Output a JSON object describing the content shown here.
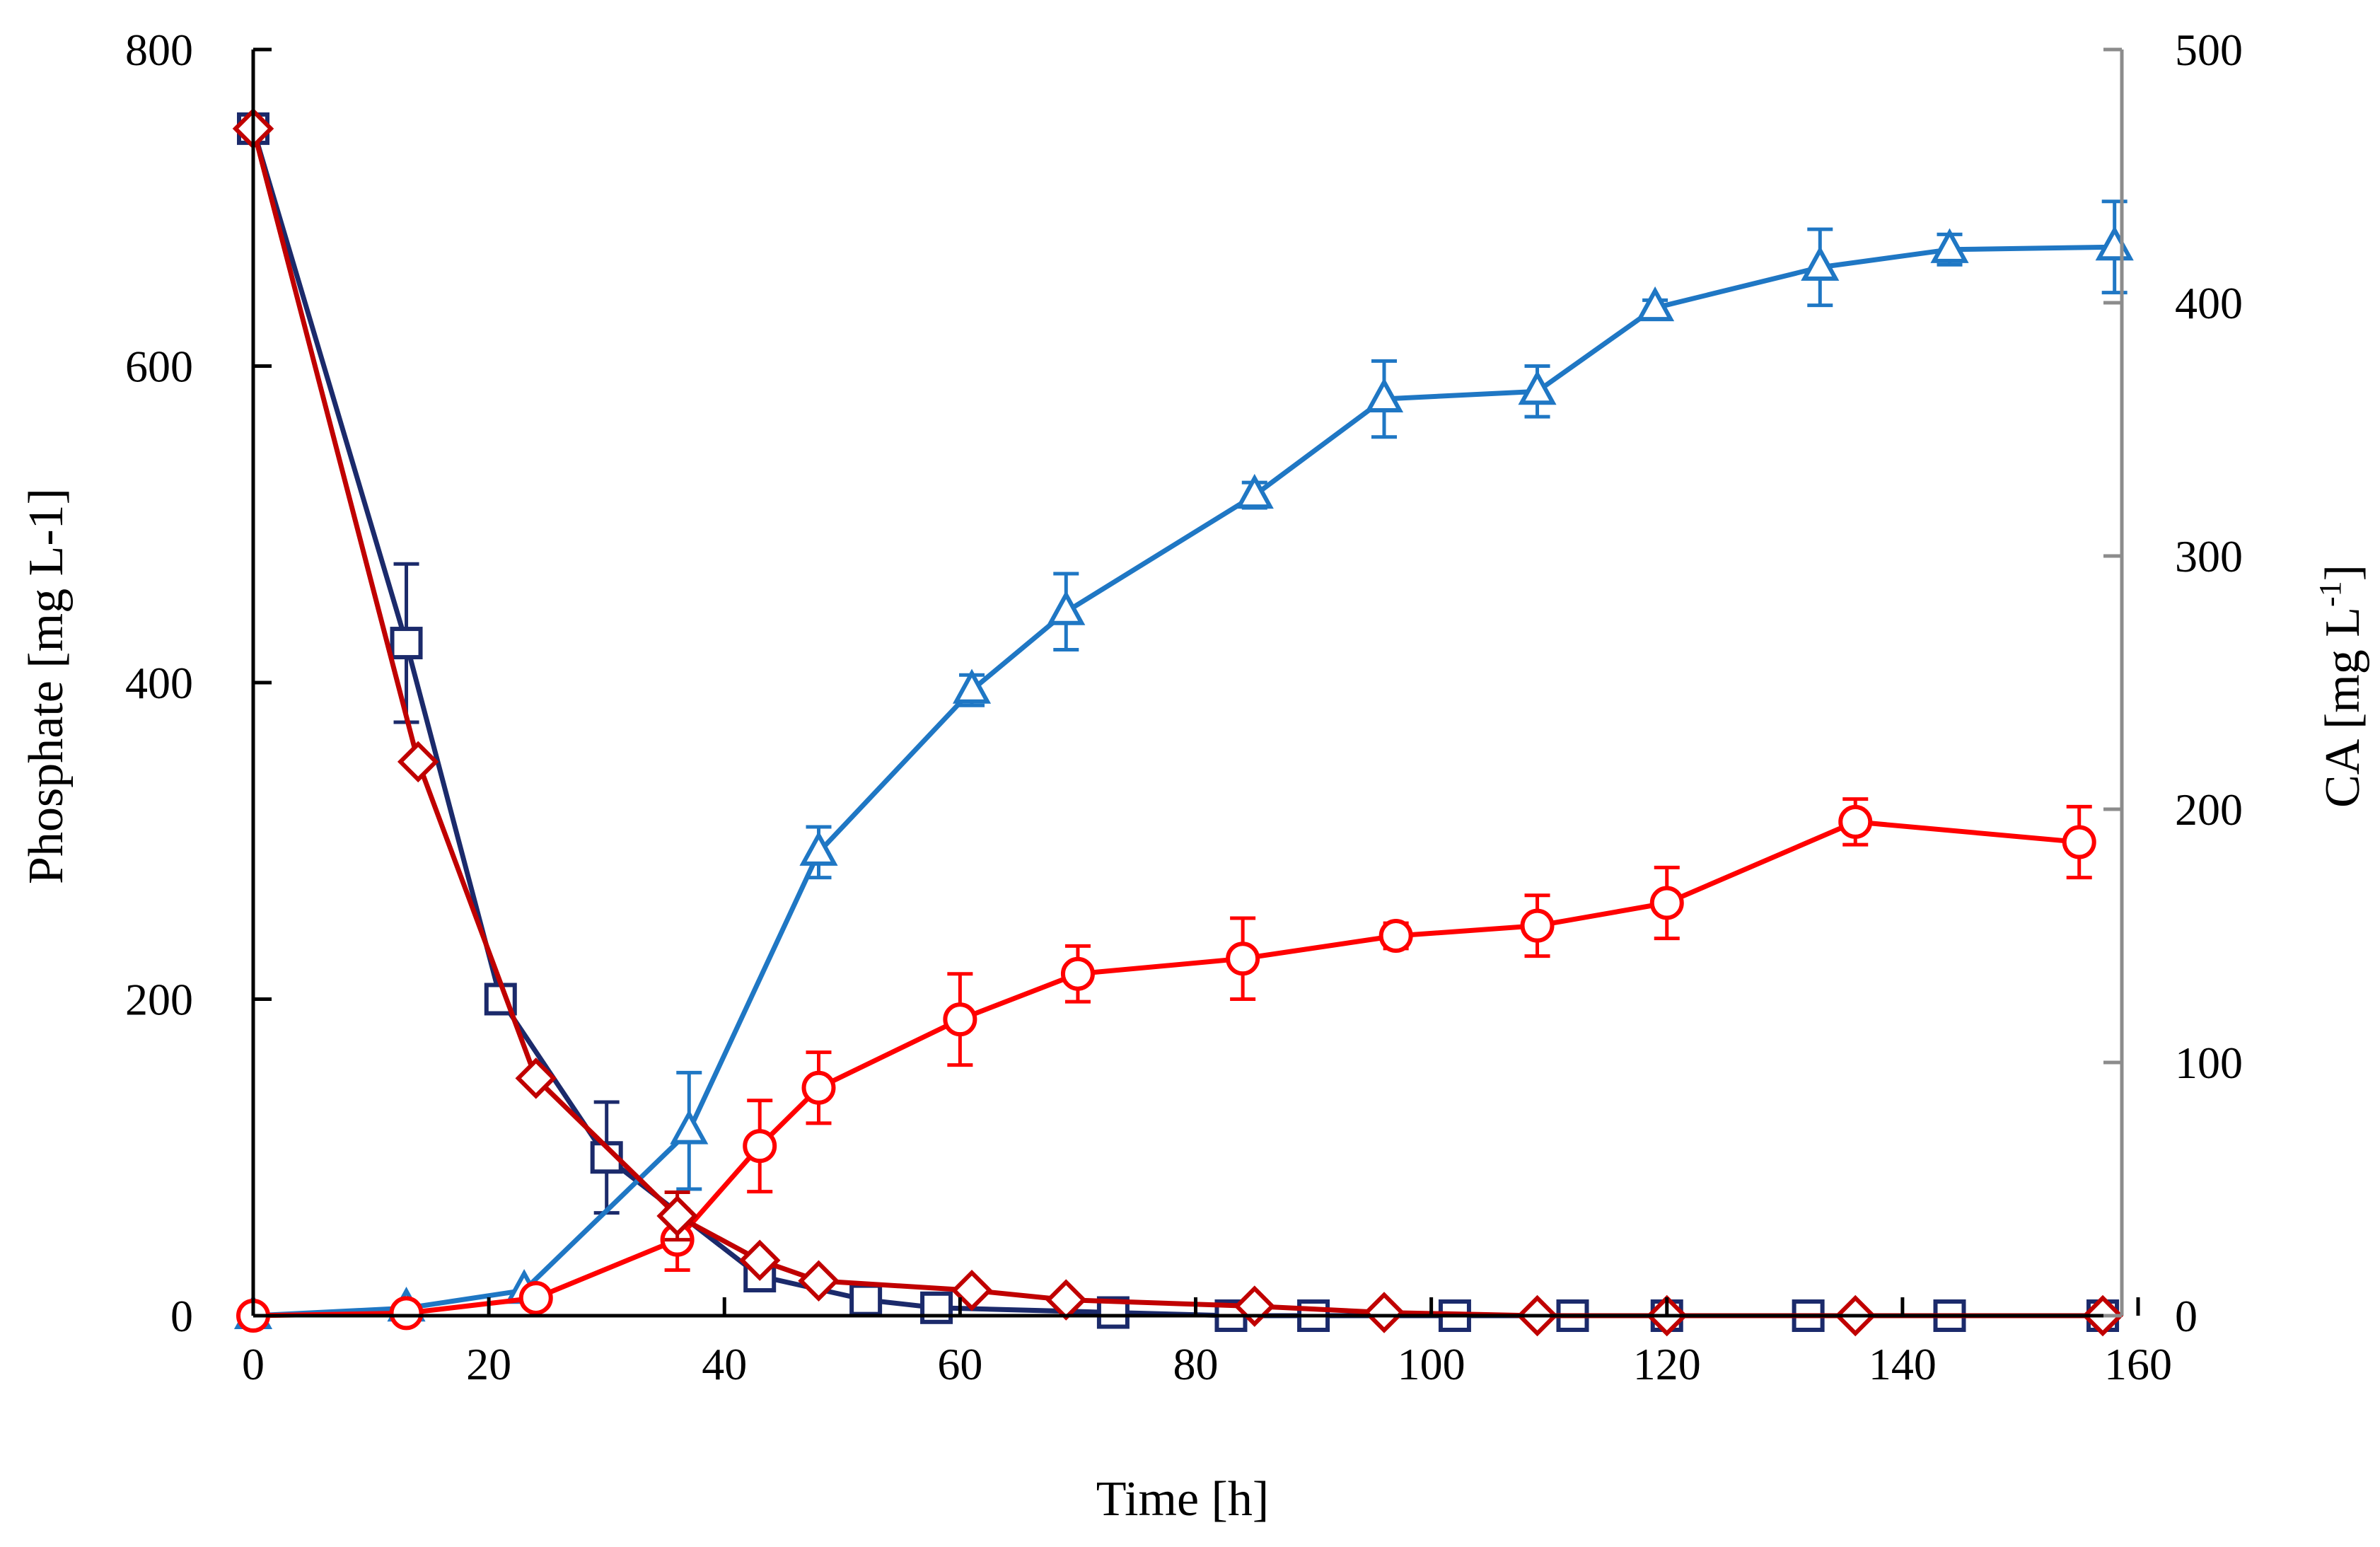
{
  "chart_data": {
    "type": "line",
    "title": "",
    "xlabel": "Time [h]",
    "ylabel": "Phosphate [mg L-1]",
    "y2label_main": "CA [mg L",
    "y2label_sup": "-1",
    "y2label_close": "]",
    "xlim": [
      0,
      160
    ],
    "ylim": [
      0,
      800
    ],
    "y2lim": [
      0,
      500
    ],
    "xticks": [
      0,
      20,
      40,
      60,
      80,
      100,
      120,
      140,
      160
    ],
    "yticks": [
      0,
      200,
      400,
      600,
      800
    ],
    "y2ticks": [
      0,
      100,
      200,
      300,
      400,
      500
    ],
    "grid": false,
    "series": [
      {
        "name": "Phosphate (square)",
        "axis": "left",
        "marker": "square",
        "color": "#1B2A6B",
        "x": [
          0,
          13,
          21,
          30,
          43,
          52,
          58,
          73,
          83,
          90,
          102,
          112,
          120,
          132,
          144,
          157
        ],
        "y": [
          750,
          425,
          200,
          100,
          25,
          10,
          5,
          2,
          0,
          0,
          0,
          0,
          0,
          0,
          0,
          0
        ],
        "err": [
          0,
          50,
          0,
          35,
          0,
          0,
          0,
          0,
          0,
          0,
          0,
          0,
          0,
          0,
          0,
          0
        ]
      },
      {
        "name": "Phosphate (diamond)",
        "axis": "left",
        "marker": "diamond",
        "color": "#C00000",
        "x": [
          0,
          14,
          24,
          36,
          43,
          48,
          61,
          69,
          85,
          96,
          109,
          120,
          136,
          157
        ],
        "y": [
          750,
          350,
          150,
          63,
          35,
          22,
          16,
          10,
          6,
          2,
          0,
          0,
          0,
          0
        ],
        "err": [
          0,
          0,
          0,
          15,
          0,
          0,
          0,
          0,
          0,
          0,
          0,
          0,
          0,
          0
        ]
      },
      {
        "name": "CA (triangle)",
        "axis": "right",
        "marker": "triangle",
        "color": "#1F77C4",
        "x": [
          0,
          13,
          23,
          37,
          48,
          61,
          69,
          85,
          96,
          109,
          119,
          133,
          144,
          158
        ],
        "y": [
          0,
          3,
          10,
          73,
          183,
          247,
          278,
          324,
          362,
          365,
          398,
          414,
          421,
          422
        ],
        "err": [
          0,
          0,
          0,
          23,
          10,
          6,
          15,
          5,
          15,
          10,
          3,
          15,
          6,
          18
        ]
      },
      {
        "name": "CA (circle)",
        "axis": "right",
        "marker": "circle",
        "color": "#FF0000",
        "x": [
          0,
          13,
          24,
          36,
          43,
          48,
          60,
          70,
          84,
          97,
          109,
          120,
          136,
          155
        ],
        "y": [
          0,
          1,
          7,
          30,
          67,
          90,
          117,
          135,
          141,
          150,
          154,
          163,
          195,
          187
        ],
        "err": [
          0,
          0,
          0,
          12,
          18,
          14,
          18,
          11,
          16,
          5,
          12,
          14,
          9,
          14
        ]
      }
    ]
  }
}
